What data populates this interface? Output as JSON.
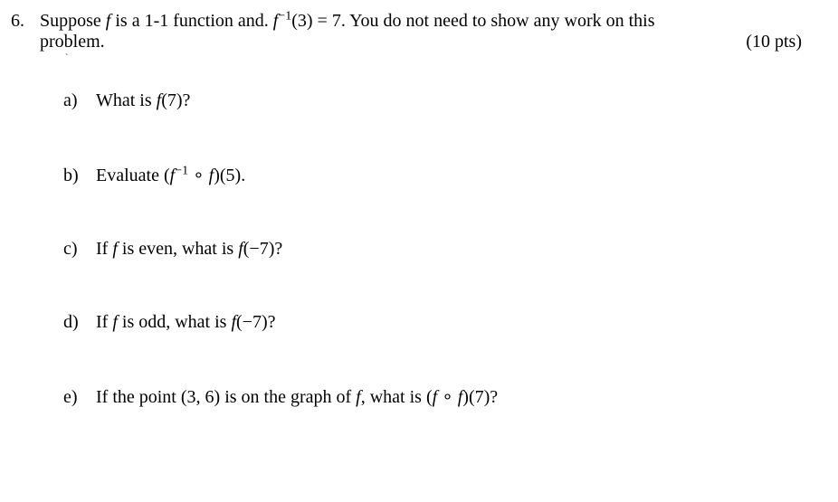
{
  "problem": {
    "number": "6.",
    "stem_line1": "Suppose f is a 1-1 function and. f⁻¹(3) = 7. You do not need to show any work on this",
    "stem_line2": "problem.",
    "points": "(10 pts)",
    "subparts": [
      {
        "label": "a)",
        "text_html": "What is <span class=\"math\">f</span><span class=\"op\">(</span>7<span class=\"op\">)?</span>"
      },
      {
        "label": "b)",
        "text_html": "Evaluate <span class=\"op\">(</span><span class=\"math\">f</span><sup>&minus;1</sup> <span class=\"op\">&#8728;</span> <span class=\"math\">f</span><span class=\"op\">)(</span>5<span class=\"op\">).</span>"
      },
      {
        "label": "c)",
        "text_html": "If <span class=\"math\">f</span> is even, what is <span class=\"math\">f</span><span class=\"op\">(&minus;</span>7<span class=\"op\">)?</span>"
      },
      {
        "label": "d)",
        "text_html": "If <span class=\"math\">f</span> is odd, what is <span class=\"math\">f</span><span class=\"op\">(&minus;</span>7<span class=\"op\">)?</span>"
      },
      {
        "label": "e)",
        "text_html": "If the point (3, 6) is on the graph of <span class=\"math\">f</span>, what is <span class=\"op\">(</span><span class=\"math\">f</span> <span class=\"op\">&#8728;</span> <span class=\"math\">f</span><span class=\"op\">)(</span>7<span class=\"op\">)?</span>"
      }
    ]
  }
}
